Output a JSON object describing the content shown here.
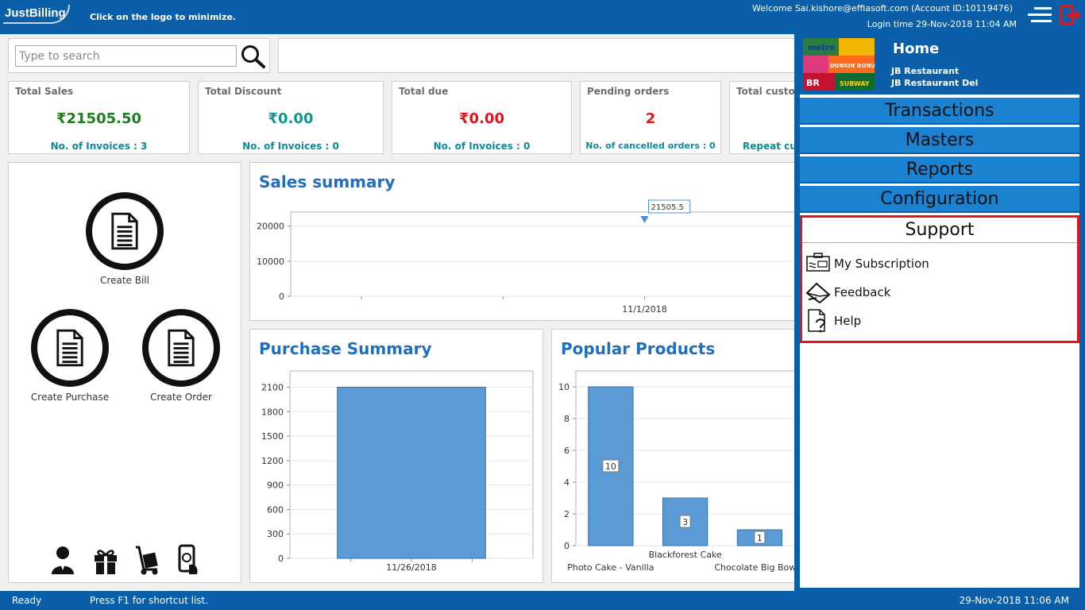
{
  "header": {
    "logo": "JustBilling",
    "hint": "Click on the logo to minimize.",
    "welcome": "Welcome Sai.kishore@effiasoft.com (Account ID:10119476)",
    "login_time": "Login time  29-Nov-2018 11:04 AM"
  },
  "search": {
    "placeholder": "Type to search",
    "value": ""
  },
  "stats": [
    {
      "title": "Total Sales",
      "value": "₹21505.50",
      "sub": "No. of Invoices : 3",
      "value_color": "#1e7e1e"
    },
    {
      "title": "Total Discount",
      "value": "₹0.00",
      "sub": "No. of Invoices : 0",
      "value_color": "#12948f"
    },
    {
      "title": "Total due",
      "value": "₹0.00",
      "sub": "No. of Invoices : 0",
      "value_color": "#e0141c"
    },
    {
      "title": "Pending orders",
      "value": "2",
      "sub": "No. of cancelled orders : 0",
      "value_color": "#e0141c"
    },
    {
      "title": "Total custo",
      "value": "",
      "sub": "Repeat cus",
      "value_color": "#12948f"
    }
  ],
  "quick_actions": {
    "create_bill": "Create Bill",
    "create_purchase": "Create Purchase",
    "create_order": "Create Order"
  },
  "bottom_icons": [
    "user-icon",
    "gift-icon",
    "hand-truck-icon",
    "mobile-payment-icon"
  ],
  "sales_summary": {
    "title": "Sales summary",
    "chart_data": {
      "type": "line",
      "title": "Sales summary",
      "x": [
        "11/1/2018"
      ],
      "series": [
        {
          "values": [
            21505.5
          ]
        }
      ],
      "data_labels": [
        "21505.5"
      ],
      "y_ticks": [
        "0",
        "10000",
        "20000"
      ],
      "ylim": [
        0,
        24000
      ],
      "grid": true
    }
  },
  "purchase_summary": {
    "title": "Purchase Summary",
    "chart_data": {
      "type": "bar",
      "title": "Purchase Summary",
      "categories": [
        "11/26/2018"
      ],
      "values": [
        2100
      ],
      "y_ticks": [
        "0",
        "300",
        "600",
        "900",
        "1200",
        "1500",
        "1800",
        "2100"
      ],
      "ylim": [
        0,
        2300
      ],
      "grid": true,
      "color": "#5b9bd5"
    }
  },
  "popular_products": {
    "title": "Popular Products",
    "chart_data": {
      "type": "bar",
      "title": "Popular Products",
      "categories": [
        "Photo Cake - Vanilla",
        "Blackforest Cake",
        "Chocolate Big Bow C"
      ],
      "values": [
        10,
        3,
        1
      ],
      "data_labels": [
        "10",
        "3",
        "1"
      ],
      "y_ticks": [
        "0",
        "2",
        "4",
        "6",
        "8",
        "10"
      ],
      "ylim": [
        0,
        11
      ],
      "grid": true,
      "color": "#5b9bd5"
    }
  },
  "side_menu": {
    "home": "Home",
    "store1": "JB Restaurant",
    "store2": "JB Restaurant Del",
    "nav": [
      "Transactions",
      "Masters",
      "Reports",
      "Configuration"
    ],
    "support_title": "Support",
    "support_items": [
      {
        "label": "My Subscription",
        "icon": "subscription-icon"
      },
      {
        "label": "Feedback",
        "icon": "feedback-icon"
      },
      {
        "label": "Help",
        "icon": "help-icon"
      }
    ],
    "thumb_words": [
      "metro",
      "DUNKIN DONUTS",
      "SUBWAY",
      "BR"
    ]
  },
  "status": {
    "left": "Ready",
    "hint": "Press F1 for shortcut list.",
    "time": "29-Nov-2018 11:06 AM"
  },
  "colors": {
    "brand": "#0b5fa8",
    "nav": "#1b82d1",
    "highlight": "#e3151c",
    "chart_bar": "#5b9bd5",
    "title": "#1f6fbf"
  }
}
